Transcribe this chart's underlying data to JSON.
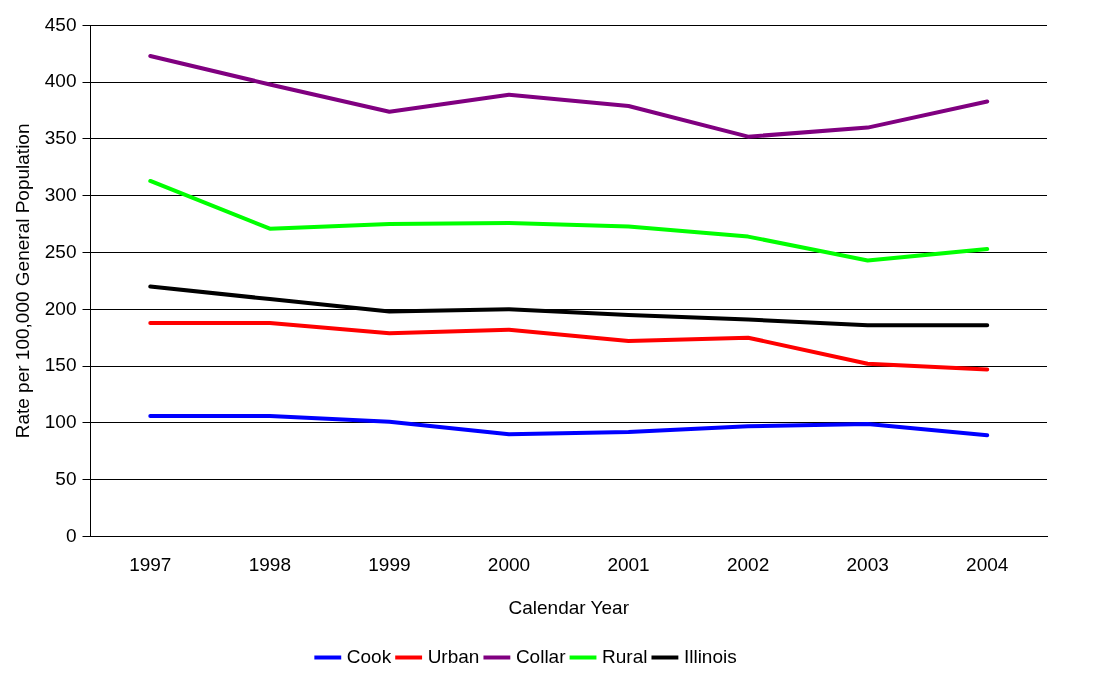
{
  "chart_data": {
    "type": "line",
    "xlabel": "Calendar Year",
    "ylabel": "Rate per 100,000 General Population",
    "categories": [
      "1997",
      "1998",
      "1999",
      "2000",
      "2001",
      "2002",
      "2003",
      "2004"
    ],
    "series": [
      {
        "name": "Cook",
        "color": "#0000ff",
        "values": [
          106,
          106,
          101,
          90,
          92,
          97,
          99,
          89
        ]
      },
      {
        "name": "Urban",
        "color": "#ff0000",
        "values": [
          188,
          188,
          179,
          182,
          172,
          175,
          152,
          147
        ]
      },
      {
        "name": "Collar",
        "color": "#800080",
        "values": [
          423,
          398,
          374,
          389,
          379,
          352,
          360,
          383
        ]
      },
      {
        "name": "Rural",
        "color": "#00ff00",
        "values": [
          313,
          271,
          275,
          276,
          273,
          264,
          243,
          253
        ]
      },
      {
        "name": "Illinois",
        "color": "#000000",
        "values": [
          220,
          209,
          198,
          200,
          195,
          191,
          186,
          186
        ]
      }
    ],
    "ylim": [
      0,
      450
    ],
    "yticks": [
      0,
      50,
      100,
      150,
      200,
      250,
      300,
      350,
      400,
      450
    ],
    "grid": "y",
    "legend": "bottom",
    "marker": "none",
    "line_style": "solid"
  }
}
